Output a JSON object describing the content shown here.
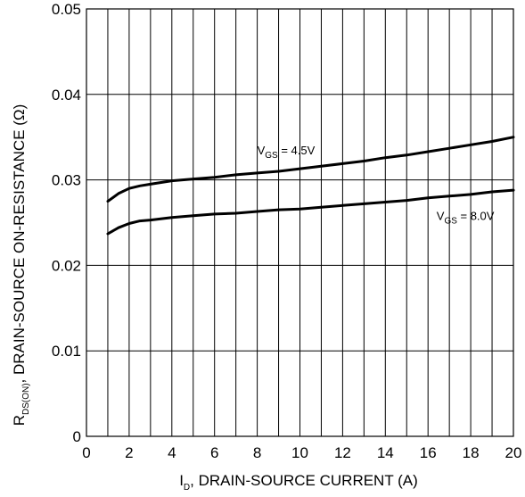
{
  "chart_data": {
    "type": "line",
    "xlabel": {
      "main": "I",
      "sub": "D",
      "rest": ", DRAIN-SOURCE CURRENT (A)"
    },
    "ylabel": {
      "main": "R",
      "sub": "DS(ON)",
      "rest": ", DRAIN-SOURCE ON-RESISTANCE (Ω)"
    },
    "xlim": [
      0,
      20
    ],
    "ylim": [
      0,
      0.05
    ],
    "x_ticks": [
      0,
      2,
      4,
      6,
      8,
      10,
      12,
      14,
      16,
      18,
      20
    ],
    "x_tick_labels": [
      "0",
      "2",
      "4",
      "6",
      "8",
      "10",
      "12",
      "14",
      "16",
      "18",
      "20"
    ],
    "y_ticks": [
      0,
      0.01,
      0.02,
      0.03,
      0.04,
      0.05
    ],
    "y_tick_labels": [
      "0",
      "0.01",
      "0.02",
      "0.03",
      "0.04",
      "0.05"
    ],
    "x_grid": [
      0,
      1,
      2,
      3,
      4,
      5,
      6,
      7,
      8,
      9,
      10,
      11,
      12,
      13,
      14,
      15,
      16,
      17,
      18,
      19,
      20
    ],
    "grid": true,
    "series": [
      {
        "name": "V_GS = 4.5V",
        "x": [
          1.0,
          1.5,
          2.0,
          2.5,
          3,
          4,
          5,
          6,
          7,
          8,
          9,
          10,
          11,
          12,
          13,
          14,
          15,
          16,
          17,
          18,
          19,
          20
        ],
        "y": [
          0.0275,
          0.0284,
          0.029,
          0.0293,
          0.0295,
          0.0299,
          0.0301,
          0.0303,
          0.0306,
          0.0308,
          0.031,
          0.0313,
          0.0316,
          0.0319,
          0.0322,
          0.0326,
          0.0329,
          0.0333,
          0.0337,
          0.0341,
          0.0345,
          0.035
        ]
      },
      {
        "name": "V_GS = 8.0V",
        "x": [
          1.0,
          1.5,
          2.0,
          2.5,
          3,
          4,
          5,
          6,
          7,
          8,
          9,
          10,
          11,
          12,
          13,
          14,
          15,
          16,
          17,
          18,
          19,
          20
        ],
        "y": [
          0.0237,
          0.0244,
          0.0249,
          0.0252,
          0.0253,
          0.0256,
          0.0258,
          0.026,
          0.0261,
          0.0263,
          0.0265,
          0.0266,
          0.0268,
          0.027,
          0.0272,
          0.0274,
          0.0276,
          0.0279,
          0.0281,
          0.0283,
          0.0286,
          0.0288
        ]
      }
    ],
    "annotations": [
      {
        "series": 0,
        "main": "V",
        "sub": "GS",
        "rest": " = 4.5V",
        "at_x": 8.0,
        "at_y": 0.033
      },
      {
        "series": 1,
        "main": "V",
        "sub": "GS",
        "rest": " = 8.0V",
        "at_x": 16.4,
        "at_y": 0.0253
      }
    ]
  }
}
